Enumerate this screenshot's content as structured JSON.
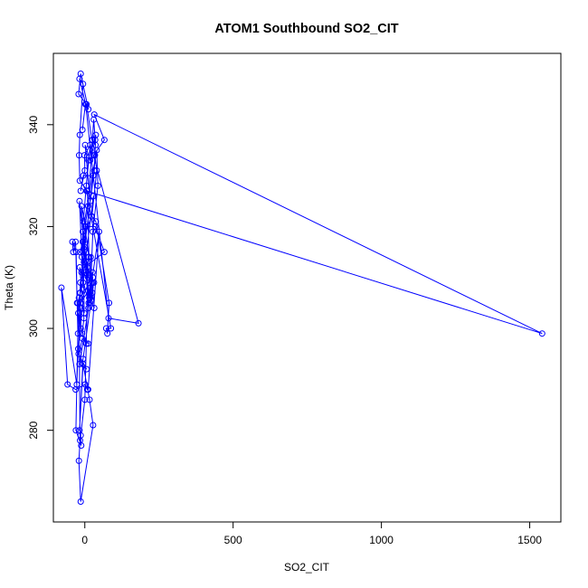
{
  "chart_data": {
    "type": "line",
    "title": "ATOM1 Southbound SO2_CIT",
    "xlabel": "SO2_CIT",
    "ylabel": "Theta (K)",
    "xlim": [
      -106,
      1605
    ],
    "ylim": [
      262,
      354
    ],
    "xticks": [
      0,
      500,
      1000,
      1500
    ],
    "xtick_labels": [
      "0",
      "500",
      "1000",
      "1500"
    ],
    "yticks": [
      280,
      300,
      320,
      340
    ],
    "ytick_labels": [
      "280",
      "300",
      "320",
      "340"
    ],
    "grid": false,
    "legend": "none",
    "line_color": "#0000ff",
    "marker": "open-circle",
    "series": [
      {
        "x": [
          -8,
          2,
          12,
          -14,
          -21,
          6,
          24,
          35,
          18,
          1,
          18,
          28,
          -5,
          -14,
          0,
          -1,
          18,
          5,
          -5,
          12,
          26,
          36,
          30,
          11,
          -7,
          22,
          29,
          -1,
          66,
          35,
          0,
          25,
          32,
          15,
          -15,
          -16,
          -15,
          11,
          -8,
          -21,
          6,
          -18,
          18,
          27,
          -10,
          -7,
          40,
          44,
          27,
          18,
          -7,
          -16,
          8,
          13,
          -17,
          -3,
          -9,
          -26,
          -29,
          -42,
          -39,
          -31,
          -22,
          -27,
          -79,
          -58,
          -31,
          1,
          8,
          11,
          48,
          15,
          20,
          -6,
          -2,
          -20,
          -16,
          -20,
          -14,
          28,
          16,
          -6,
          -18,
          -6,
          25,
          26,
          -14,
          19,
          -1,
          32,
          37,
          34,
          40,
          24,
          37,
          82,
          76,
          72,
          88,
          6,
          1542,
          32,
          66,
          29,
          181,
          80,
          3,
          -18,
          -6,
          -17,
          -19,
          -17,
          9,
          14,
          -15,
          4,
          -11,
          12,
          31,
          -3,
          -11,
          11,
          -18,
          -6,
          -24,
          -14,
          -11,
          -23,
          -22,
          -30,
          -12,
          -14,
          0,
          5,
          11
        ],
        "y": [
          339,
          344,
          343,
          350,
          346,
          344,
          337,
          337,
          333,
          336,
          325,
          330,
          330,
          327,
          331,
          334,
          336,
          328,
          321,
          333,
          337,
          336,
          341,
          324,
          317,
          322,
          326,
          312,
          315,
          320,
          320,
          309,
          304,
          306,
          309,
          307,
          299,
          297,
          298,
          295,
          292,
          293,
          306,
          310,
          314,
          319,
          335,
          328,
          319,
          305,
          317,
          315,
          312,
          305,
          312,
          302,
          299,
          305,
          315,
          317,
          315,
          317,
          296,
          289,
          308,
          289,
          288,
          289,
          288,
          288,
          319,
          306,
          314,
          317,
          303,
          306,
          278,
          274,
          266,
          281,
          286,
          293,
          280,
          294,
          307,
          311,
          305,
          308,
          316,
          331,
          338,
          334,
          331,
          322,
          321,
          305,
          299,
          300,
          300,
          327,
          299,
          342,
          337,
          334,
          301,
          302,
          344,
          349,
          348,
          338,
          334,
          329,
          327,
          314,
          307,
          320,
          324,
          304,
          309,
          313,
          311,
          310,
          325,
          309,
          305,
          300,
          304,
          299,
          303,
          280,
          277,
          279,
          286,
          297,
          314
        ]
      }
    ]
  }
}
